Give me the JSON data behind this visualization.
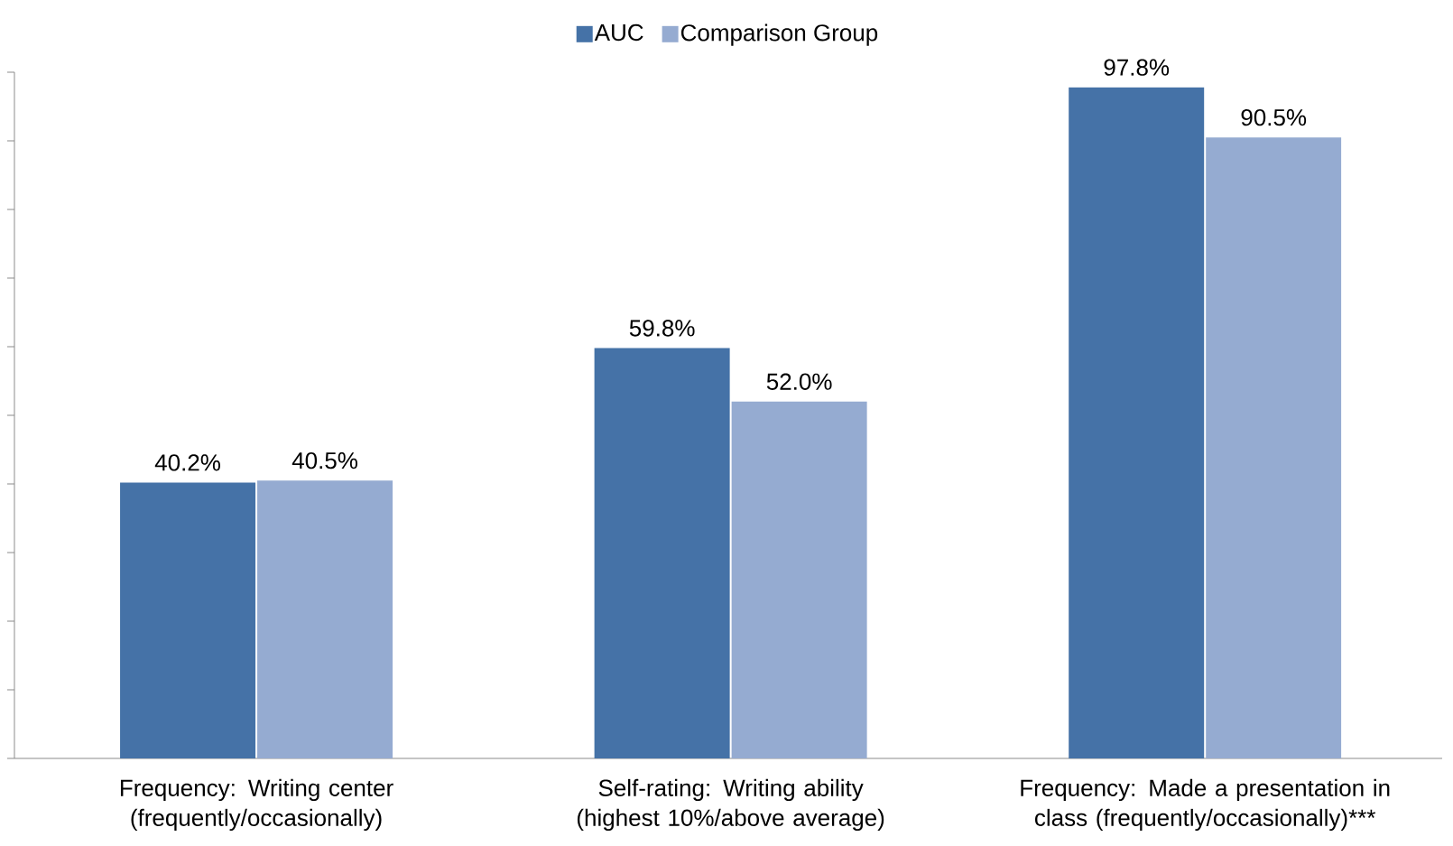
{
  "chart_data": {
    "type": "bar",
    "categories": [
      "Frequency: Writing center (frequently/occasionally)",
      "Self-rating: Writing ability (highest 10%/above average)",
      "Frequency: Made a presentation in class (frequently/occasionally)***"
    ],
    "series": [
      {
        "name": "AUC",
        "color": "#4572a7",
        "values": [
          40.2,
          59.8,
          97.8
        ],
        "value_labels": [
          "40.2%",
          "59.8%",
          "97.8%"
        ]
      },
      {
        "name": "Comparison Group",
        "color": "#95abd1",
        "values": [
          40.5,
          52.0,
          90.5
        ],
        "value_labels": [
          "40.5%",
          "52.0%",
          "90.5%"
        ]
      }
    ],
    "ylim": [
      0,
      100
    ],
    "yticks": [
      {
        "value": 0,
        "label": null
      },
      {
        "value": 10,
        "label": null
      },
      {
        "value": 20,
        "label": null
      },
      {
        "value": 30,
        "label": null
      },
      {
        "value": 40,
        "label": null
      },
      {
        "value": 50,
        "label": null
      },
      {
        "value": 60,
        "label": null
      },
      {
        "value": 70,
        "label": null
      },
      {
        "value": 80,
        "label": null
      },
      {
        "value": 90,
        "label": null
      },
      {
        "value": 100,
        "label": null
      }
    ],
    "tick_labels": "x",
    "legend": "top",
    "grid": false
  }
}
